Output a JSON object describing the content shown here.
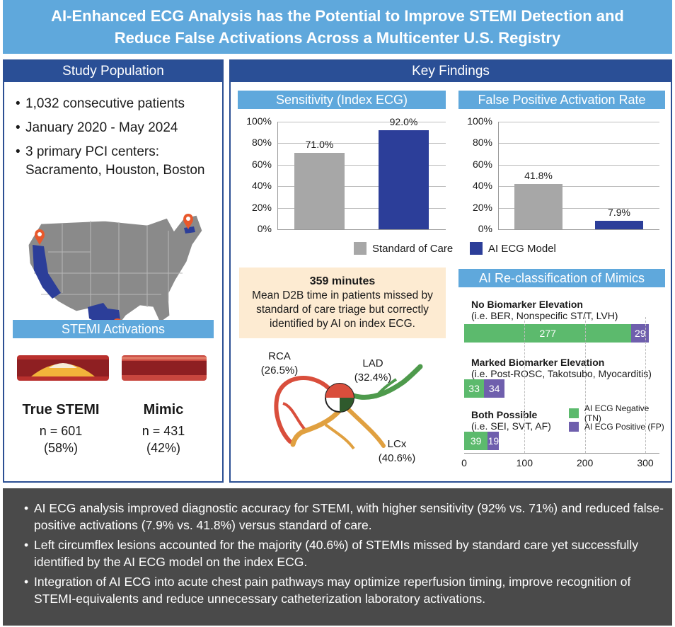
{
  "title": {
    "line1": "AI-Enhanced ECG Analysis has the Potential to Improve STEMI Detection and",
    "line2": "Reduce False Activations Across a Multicenter U.S. Registry"
  },
  "study_population": {
    "heading": "Study Population",
    "bullets": [
      "1,032 consecutive patients",
      "January 2020 - May 2024",
      "3 primary PCI centers:"
    ],
    "centers_line": "Sacramento, Houston, Boston"
  },
  "stemi": {
    "heading": "STEMI Activations",
    "true": {
      "name": "True STEMI",
      "n": "n = 601",
      "pct": "(58%)"
    },
    "mimic": {
      "name": "Mimic",
      "n": "n = 431",
      "pct": "(42%)"
    }
  },
  "key_findings": {
    "heading": "Key Findings"
  },
  "legend": {
    "soc": "Standard of Care",
    "ai": "AI ECG Model"
  },
  "d2b": {
    "value": "359 minutes",
    "line1": "Mean D2B time in patients missed by",
    "line2": "standard of care triage but correctly",
    "line3": "identified by AI on index ECG."
  },
  "arteries": {
    "rca": {
      "name": "RCA",
      "pct": "(26.5%)"
    },
    "lad": {
      "name": "LAD",
      "pct": "(32.4%)"
    },
    "lcx": {
      "name": "LCx",
      "pct": "(40.6%)"
    }
  },
  "colors": {
    "soc": "#a7a7a7",
    "ai": "#2c3e99",
    "tn": "#5cba6d",
    "fp": "#6f5fad"
  },
  "chart_data": [
    {
      "type": "bar",
      "title": "Sensitivity (Index ECG)",
      "categories": [
        "Standard of Care",
        "AI ECG Model"
      ],
      "values": [
        71.0,
        92.0
      ],
      "labels": [
        "71.0%",
        "92.0%"
      ],
      "ylim": [
        0,
        100
      ],
      "yticks": [
        "0%",
        "20%",
        "40%",
        "60%",
        "80%",
        "100%"
      ]
    },
    {
      "type": "bar",
      "title": "False Positive Activation Rate",
      "categories": [
        "Standard of Care",
        "AI ECG Model"
      ],
      "values": [
        41.8,
        7.9
      ],
      "labels": [
        "41.8%",
        "7.9%"
      ],
      "ylim": [
        0,
        100
      ],
      "yticks": [
        "0%",
        "20%",
        "40%",
        "60%",
        "80%",
        "100%"
      ]
    },
    {
      "type": "bar",
      "orientation": "horizontal",
      "stacked": true,
      "title": "AI Re-classification of Mimics",
      "categories": [
        {
          "name": "No Biomarker Elevation",
          "sub": "(i.e. BER, Nonspecific ST/T, LVH)"
        },
        {
          "name": "Marked Biomarker Elevation",
          "sub": "(i.e. Post-ROSC, Takotsubo, Myocarditis)"
        },
        {
          "name": "Both Possible",
          "sub": "(i.e. SEI, SVT, AF)"
        }
      ],
      "series": [
        {
          "name": "AI ECG Negative (TN)",
          "values": [
            277,
            33,
            39
          ]
        },
        {
          "name": "AI ECG Positive (FP)",
          "values": [
            29,
            34,
            19
          ]
        }
      ],
      "xlim": [
        0,
        300
      ],
      "xticks": [
        "0",
        "100",
        "200",
        "300"
      ]
    }
  ],
  "takeaways": [
    "AI ECG analysis improved diagnostic accuracy for STEMI, with higher sensitivity (92% vs. 71%) and reduced false-positive activations (7.9% vs. 41.8%) versus standard of care.",
    "Left circumflex lesions accounted for the majority (40.6%) of STEMIs missed by standard care yet successfully identified by the AI ECG model on the index ECG.",
    "Integration of AI ECG into acute chest pain pathways may optimize reperfusion timing, improve recognition of STEMI-equivalents and reduce unnecessary catheterization laboratory activations."
  ]
}
